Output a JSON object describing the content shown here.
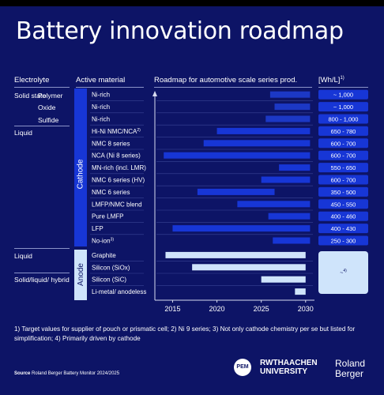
{
  "title": "Battery innovation roadmap",
  "headers": {
    "electrolyte": "Electrolyte",
    "active_material": "Active material",
    "roadmap": "Roadmap for automotive scale series prod.",
    "unit": "[Wh/L]",
    "unit_sup": "1)"
  },
  "electrolyte_groups": {
    "solid_state": "Solid state",
    "polymer": "Polymer",
    "oxide": "Oxide",
    "sulfide": "Sulfide",
    "liquid_top": "Liquid",
    "liquid_anode": "Liquid",
    "solid_liquid_hybrid": "Solid/liquid/ hybrid"
  },
  "side_labels": {
    "cathode": "Cathode",
    "anode": "Anode"
  },
  "anode_note": "4)",
  "colors": {
    "background": "#0d1466",
    "cathode_bar": "#1736d6",
    "solid_bar": "#1e3ccf",
    "anode_bar": "#cfe4fb",
    "value_box": "#1736d6",
    "anode_box": "#cfe4fb"
  },
  "chart_data": {
    "type": "bar",
    "subtype": "gantt",
    "xlim": [
      2013,
      2031
    ],
    "x_ticks": [
      "2015",
      "2020",
      "2025",
      "2030"
    ],
    "rows": [
      {
        "material": "Ni-rich",
        "group": "solid-polymer",
        "start": 2026,
        "end": 2030.5,
        "value": "~ 1,000",
        "style": "solid"
      },
      {
        "material": "Ni-rich",
        "group": "solid-oxide",
        "start": 2026.5,
        "end": 2030.5,
        "value": "~ 1,000",
        "style": "solid"
      },
      {
        "material": "Ni-rich",
        "group": "solid-sulfide",
        "start": 2025.5,
        "end": 2030.5,
        "value": "800 - 1,000",
        "style": "solid"
      },
      {
        "material": "Hi-Ni NMC/NCA",
        "sup": "2)",
        "group": "cathode",
        "start": 2020,
        "end": 2030.5,
        "value": "650 - 780",
        "style": "cathode"
      },
      {
        "material": "NMC 8 series",
        "group": "cathode",
        "start": 2018.5,
        "end": 2030.5,
        "value": "600 - 700",
        "style": "cathode"
      },
      {
        "material": "NCA (Ni 8 series)",
        "group": "cathode",
        "start": 2014,
        "end": 2030.5,
        "value": "600 - 700",
        "style": "cathode"
      },
      {
        "material": "MN-rich (incl. LMR)",
        "group": "cathode",
        "start": 2027,
        "end": 2030.5,
        "value": "550 - 650",
        "style": "cathode"
      },
      {
        "material": "NMC 6 series (HV)",
        "group": "cathode",
        "start": 2025,
        "end": 2030.5,
        "value": "600 - 700",
        "style": "cathode"
      },
      {
        "material": "NMC 6 series",
        "group": "cathode",
        "start": 2017.8,
        "end": 2026.5,
        "value": "350 - 500",
        "style": "cathode"
      },
      {
        "material": "LMFP/NMC blend",
        "group": "cathode",
        "start": 2022.3,
        "end": 2030.5,
        "value": "450 - 550",
        "style": "cathode"
      },
      {
        "material": "Pure LMFP",
        "group": "cathode",
        "start": 2025.8,
        "end": 2030.5,
        "value": "400 - 460",
        "style": "cathode"
      },
      {
        "material": "LFP",
        "group": "cathode",
        "start": 2015,
        "end": 2030.5,
        "value": "400 - 430",
        "style": "cathode"
      },
      {
        "material": "No-ion",
        "sup": "3)",
        "group": "cathode",
        "start": 2026.3,
        "end": 2030.5,
        "value": "250 - 300",
        "style": "cathode"
      },
      {
        "material": "Graphite",
        "group": "anode",
        "start": 2014.2,
        "end": 2030,
        "value": "",
        "style": "anode"
      },
      {
        "material": "Silicon (SiOx)",
        "group": "anode",
        "start": 2017.2,
        "end": 2030,
        "value": "",
        "style": "anode"
      },
      {
        "material": "Silicon (SiC)",
        "group": "anode",
        "start": 2025,
        "end": 2030,
        "value": "",
        "style": "anode"
      },
      {
        "material": "Li-metal/ anodeless",
        "group": "anode",
        "start": 2028.8,
        "end": 2030,
        "value": "",
        "style": "anode"
      }
    ]
  },
  "footnote": "1) Target values for supplier of pouch or prismatic cell; 2) Ni 9 series; 3) Not only cathode chemistry per se but listed for simplification; 4) Primarily driven by cathode",
  "source": {
    "label": "Source",
    "text": "Roland Berger Battery Monitor 2024/2025"
  },
  "logos": {
    "pem": "PEM",
    "rwth_line1": "RWTHAACHEN",
    "rwth_line2": "UNIVERSITY",
    "rb_line1": "Roland",
    "rb_line2": "Berger"
  }
}
